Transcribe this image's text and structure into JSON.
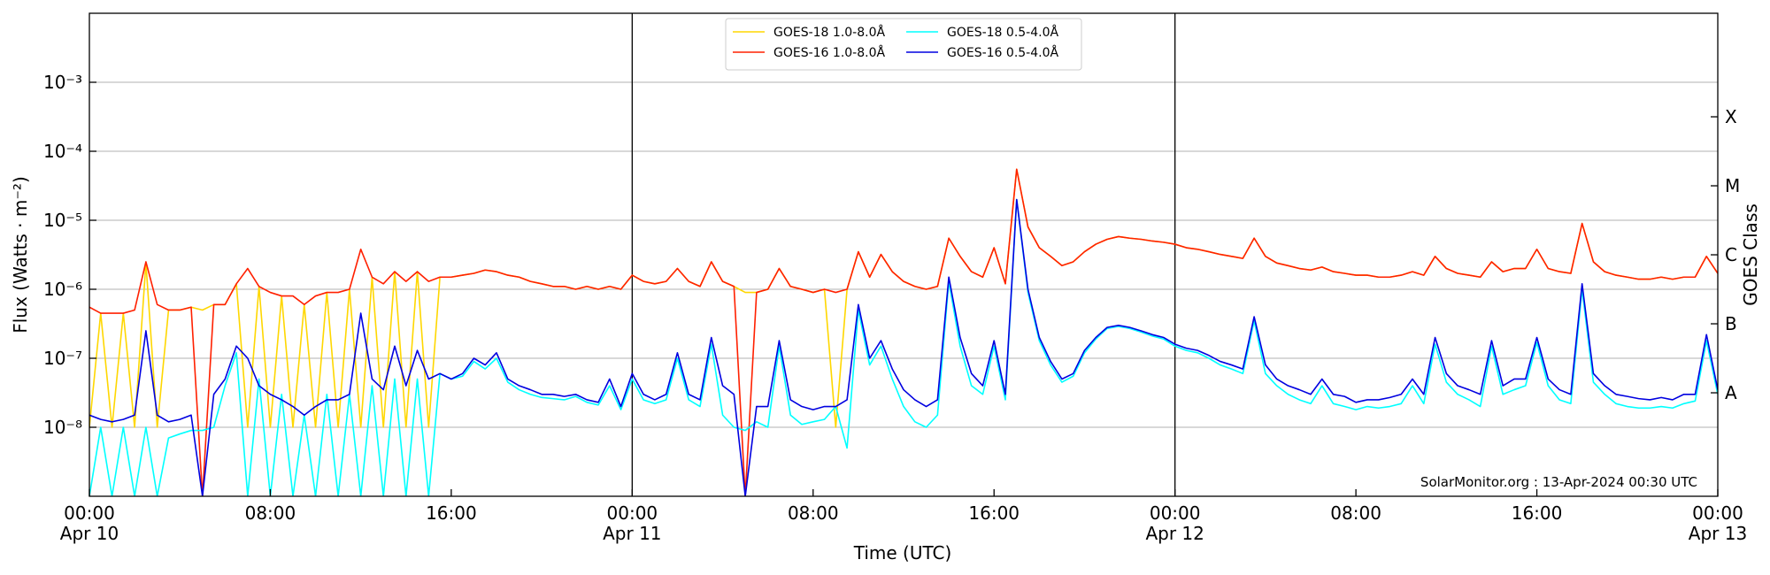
{
  "chart_data": {
    "type": "line",
    "xlabel": "Time (UTC)",
    "ylabel": "Flux (Watts · m⁻²)",
    "y2label": "GOES Class",
    "annotation": "SolarMonitor.org : 13-Apr-2024 00:30 UTC",
    "yscale": "log",
    "grid": true,
    "legend": "upper center",
    "xlim": [
      0,
      72
    ],
    "xticks": [
      {
        "value": 0,
        "label": "00:00\nApr 10"
      },
      {
        "value": 8,
        "label": "08:00"
      },
      {
        "value": 16,
        "label": "16:00"
      },
      {
        "value": 24,
        "label": "00:00\nApr 11"
      },
      {
        "value": 32,
        "label": "08:00"
      },
      {
        "value": 40,
        "label": "16:00"
      },
      {
        "value": 48,
        "label": "00:00\nApr 12"
      },
      {
        "value": 56,
        "label": "08:00"
      },
      {
        "value": 64,
        "label": "16:00"
      },
      {
        "value": 72,
        "label": "00:00\nApr 13"
      }
    ],
    "ylim": [
      1e-09,
      0.01
    ],
    "yticks": [
      {
        "value": 1e-08,
        "label": "10⁻⁸"
      },
      {
        "value": 1e-07,
        "label": "10⁻⁷"
      },
      {
        "value": 1e-06,
        "label": "10⁻⁶"
      },
      {
        "value": 1e-05,
        "label": "10⁻⁵"
      },
      {
        "value": 0.0001,
        "label": "10⁻⁴"
      },
      {
        "value": 0.001,
        "label": "10⁻³"
      }
    ],
    "y2lim": [
      1e-09,
      0.01
    ],
    "y2ticks": [
      {
        "value": 3.16e-08,
        "label": "A"
      },
      {
        "value": 3.16e-07,
        "label": "B"
      },
      {
        "value": 3.16e-06,
        "label": "C"
      },
      {
        "value": 3.16e-05,
        "label": "M"
      },
      {
        "value": 0.000316,
        "label": "X"
      }
    ],
    "x": [
      0,
      0.5,
      1,
      1.5,
      2,
      2.5,
      3,
      3.5,
      4,
      4.5,
      5,
      5.5,
      6,
      6.5,
      7,
      7.5,
      8,
      8.5,
      9,
      9.5,
      10,
      10.5,
      11,
      11.5,
      12,
      12.5,
      13,
      13.5,
      14,
      14.5,
      15,
      15.5,
      16,
      16.5,
      17,
      17.5,
      18,
      18.5,
      19,
      19.5,
      20,
      20.5,
      21,
      21.5,
      22,
      22.5,
      23,
      23.5,
      24,
      24.5,
      25,
      25.5,
      26,
      26.5,
      27,
      27.5,
      28,
      28.5,
      29,
      29.5,
      30,
      30.5,
      31,
      31.5,
      32,
      32.5,
      33,
      33.5,
      34,
      34.5,
      35,
      35.5,
      36,
      36.5,
      37,
      37.5,
      38,
      38.5,
      39,
      39.5,
      40,
      40.5,
      41,
      41.5,
      42,
      42.5,
      43,
      43.5,
      44,
      44.5,
      45,
      45.5,
      46,
      46.5,
      47,
      47.5,
      48,
      48.5,
      49,
      49.5,
      50,
      50.5,
      51,
      51.5,
      52,
      52.5,
      53,
      53.5,
      54,
      54.5,
      55,
      55.5,
      56,
      56.5,
      57,
      57.5,
      58,
      58.5,
      59,
      59.5,
      60,
      60.5,
      61,
      61.5,
      62,
      62.5,
      63,
      63.5,
      64,
      64.5,
      65,
      65.5,
      66,
      66.5,
      67,
      67.5,
      68,
      68.5,
      69,
      69.5,
      70,
      70.5,
      71,
      71.5,
      72
    ],
    "series": [
      {
        "name": "GOES-18 1.0-8.0Å",
        "color": "#ffd700",
        "values": [
          1e-08,
          4.5e-07,
          1e-08,
          4.5e-07,
          1e-08,
          2.4e-06,
          1e-08,
          5e-07,
          5e-07,
          5.5e-07,
          5e-07,
          6e-07,
          6e-07,
          1.2e-06,
          1e-08,
          1.1e-06,
          1e-08,
          8e-07,
          1e-08,
          6e-07,
          1e-08,
          9e-07,
          1e-08,
          1e-06,
          1e-08,
          1.5e-06,
          1e-08,
          1.8e-06,
          1e-08,
          1.8e-06,
          1e-08,
          1.5e-06,
          1.5e-06,
          1.6e-06,
          1.7e-06,
          1.9e-06,
          1.8e-06,
          1.6e-06,
          1.5e-06,
          1.3e-06,
          1.2e-06,
          1.1e-06,
          1.1e-06,
          1e-06,
          1.1e-06,
          1e-06,
          1.1e-06,
          1e-06,
          1.6e-06,
          1.3e-06,
          1.2e-06,
          1.3e-06,
          2e-06,
          1.3e-06,
          1.1e-06,
          2.5e-06,
          1.3e-06,
          1.1e-06,
          9e-07,
          9e-07,
          1e-06,
          2e-06,
          1.1e-06,
          1e-06,
          9e-07,
          1e-06,
          1e-08,
          1e-06,
          3.5e-06,
          1.5e-06,
          3.2e-06,
          1.8e-06,
          1.3e-06,
          1.1e-06,
          1e-06,
          1.1e-06,
          5.5e-06,
          3e-06,
          1.8e-06,
          1.5e-06,
          4e-06,
          1.2e-06,
          5.5e-05,
          8e-06,
          4e-06,
          3e-06,
          2.2e-06,
          2.5e-06,
          3.5e-06,
          4.5e-06,
          5.3e-06,
          5.8e-06,
          5.5e-06,
          5.3e-06,
          5e-06,
          4.8e-06,
          4.5e-06,
          4e-06,
          3.8e-06,
          3.5e-06,
          3.2e-06,
          3e-06,
          2.8e-06,
          5.5e-06,
          3e-06,
          2.4e-06,
          2.2e-06,
          2e-06,
          1.9e-06,
          2.1e-06,
          1.8e-06,
          1.7e-06,
          1.6e-06,
          1.6e-06,
          1.5e-06,
          1.5e-06,
          1.6e-06,
          1.8e-06,
          1.6e-06,
          3e-06,
          2e-06,
          1.7e-06,
          1.6e-06,
          1.5e-06,
          2.5e-06,
          1.8e-06,
          2e-06,
          2e-06,
          3.8e-06,
          2e-06,
          1.8e-06,
          1.7e-06,
          9e-06,
          2.5e-06,
          1.8e-06,
          1.6e-06,
          1.5e-06,
          1.4e-06,
          1.4e-06,
          1.5e-06,
          1.4e-06,
          1.5e-06,
          1.5e-06,
          3e-06,
          1.7e-06
        ]
      },
      {
        "name": "GOES-16 1.0-8.0Å",
        "color": "#ff2000",
        "values": [
          5.5e-07,
          4.5e-07,
          4.5e-07,
          4.5e-07,
          5e-07,
          2.5e-06,
          6e-07,
          5e-07,
          5e-07,
          5.5e-07,
          1e-09,
          6e-07,
          6e-07,
          1.2e-06,
          2e-06,
          1.1e-06,
          9e-07,
          8e-07,
          8e-07,
          6e-07,
          8e-07,
          9e-07,
          9e-07,
          1e-06,
          3.8e-06,
          1.5e-06,
          1.2e-06,
          1.8e-06,
          1.3e-06,
          1.8e-06,
          1.3e-06,
          1.5e-06,
          1.5e-06,
          1.6e-06,
          1.7e-06,
          1.9e-06,
          1.8e-06,
          1.6e-06,
          1.5e-06,
          1.3e-06,
          1.2e-06,
          1.1e-06,
          1.1e-06,
          1e-06,
          1.1e-06,
          1e-06,
          1.1e-06,
          1e-06,
          1.6e-06,
          1.3e-06,
          1.2e-06,
          1.3e-06,
          2e-06,
          1.3e-06,
          1.1e-06,
          2.5e-06,
          1.3e-06,
          1.1e-06,
          1e-09,
          9e-07,
          1e-06,
          2e-06,
          1.1e-06,
          1e-06,
          9e-07,
          1e-06,
          9e-07,
          1e-06,
          3.5e-06,
          1.5e-06,
          3.2e-06,
          1.8e-06,
          1.3e-06,
          1.1e-06,
          1e-06,
          1.1e-06,
          5.5e-06,
          3e-06,
          1.8e-06,
          1.5e-06,
          4e-06,
          1.2e-06,
          5.5e-05,
          8e-06,
          4e-06,
          3e-06,
          2.2e-06,
          2.5e-06,
          3.5e-06,
          4.5e-06,
          5.3e-06,
          5.8e-06,
          5.5e-06,
          5.3e-06,
          5e-06,
          4.8e-06,
          4.5e-06,
          4e-06,
          3.8e-06,
          3.5e-06,
          3.2e-06,
          3e-06,
          2.8e-06,
          5.5e-06,
          3e-06,
          2.4e-06,
          2.2e-06,
          2e-06,
          1.9e-06,
          2.1e-06,
          1.8e-06,
          1.7e-06,
          1.6e-06,
          1.6e-06,
          1.5e-06,
          1.5e-06,
          1.6e-06,
          1.8e-06,
          1.6e-06,
          3e-06,
          2e-06,
          1.7e-06,
          1.6e-06,
          1.5e-06,
          2.5e-06,
          1.8e-06,
          2e-06,
          2e-06,
          3.8e-06,
          2e-06,
          1.8e-06,
          1.7e-06,
          9e-06,
          2.5e-06,
          1.8e-06,
          1.6e-06,
          1.5e-06,
          1.4e-06,
          1.4e-06,
          1.5e-06,
          1.4e-06,
          1.5e-06,
          1.5e-06,
          3e-06,
          1.7e-06
        ]
      },
      {
        "name": "GOES-18 0.5-4.0Å",
        "color": "#00ffff",
        "values": [
          1e-09,
          1e-08,
          1e-09,
          1e-08,
          1e-09,
          1e-08,
          1e-09,
          7e-09,
          8e-09,
          9e-09,
          9e-09,
          1e-08,
          4e-08,
          1.2e-07,
          1e-09,
          5e-08,
          1e-09,
          3e-08,
          1e-09,
          1.5e-08,
          1e-09,
          3e-08,
          1e-09,
          3e-08,
          1e-09,
          4e-08,
          1e-09,
          5e-08,
          1e-09,
          5e-08,
          1e-09,
          6e-08,
          5e-08,
          5.5e-08,
          9e-08,
          7e-08,
          1e-07,
          4.5e-08,
          3.5e-08,
          3e-08,
          2.7e-08,
          2.6e-08,
          2.5e-08,
          2.8e-08,
          2.3e-08,
          2.1e-08,
          4e-08,
          1.8e-08,
          5e-08,
          2.5e-08,
          2.2e-08,
          2.5e-08,
          1e-07,
          2.5e-08,
          2e-08,
          1.6e-07,
          1.5e-08,
          1e-08,
          9e-09,
          1.2e-08,
          1e-08,
          1.5e-07,
          1.5e-08,
          1.1e-08,
          1.2e-08,
          1.3e-08,
          2e-08,
          5e-09,
          5e-07,
          8e-08,
          1.5e-07,
          5e-08,
          2e-08,
          1.2e-08,
          1e-08,
          1.5e-08,
          1.3e-06,
          1.5e-07,
          4e-08,
          3e-08,
          1.5e-07,
          2.5e-08,
          2e-05,
          9e-07,
          1.8e-07,
          8e-08,
          4.5e-08,
          5.5e-08,
          1.2e-07,
          1.9e-07,
          2.7e-07,
          2.9e-07,
          2.7e-07,
          2.4e-07,
          2.1e-07,
          1.9e-07,
          1.5e-07,
          1.3e-07,
          1.2e-07,
          1e-07,
          8e-08,
          7e-08,
          6e-08,
          3.5e-07,
          6e-08,
          4e-08,
          3e-08,
          2.5e-08,
          2.2e-08,
          4e-08,
          2.2e-08,
          2e-08,
          1.8e-08,
          2e-08,
          1.9e-08,
          2e-08,
          2.2e-08,
          4e-08,
          2.2e-08,
          1.6e-07,
          4.5e-08,
          3e-08,
          2.5e-08,
          2e-08,
          1.5e-07,
          3e-08,
          3.5e-08,
          4e-08,
          1.7e-07,
          4e-08,
          2.5e-08,
          2.2e-08,
          1e-06,
          4.5e-08,
          3e-08,
          2.2e-08,
          2e-08,
          1.9e-08,
          1.9e-08,
          2e-08,
          1.9e-08,
          2.2e-08,
          2.4e-08,
          1.8e-07,
          3e-08
        ]
      },
      {
        "name": "GOES-16 0.5-4.0Å",
        "color": "#0000e0",
        "values": [
          1.5e-08,
          1.3e-08,
          1.2e-08,
          1.3e-08,
          1.5e-08,
          2.5e-07,
          1.5e-08,
          1.2e-08,
          1.3e-08,
          1.5e-08,
          1e-09,
          3e-08,
          5e-08,
          1.5e-07,
          1e-07,
          4e-08,
          3e-08,
          2.5e-08,
          2e-08,
          1.5e-08,
          2e-08,
          2.5e-08,
          2.5e-08,
          3e-08,
          4.5e-07,
          5e-08,
          3.5e-08,
          1.5e-07,
          4e-08,
          1.3e-07,
          5e-08,
          6e-08,
          5e-08,
          6e-08,
          1e-07,
          8e-08,
          1.2e-07,
          5e-08,
          4e-08,
          3.5e-08,
          3e-08,
          3e-08,
          2.8e-08,
          3e-08,
          2.5e-08,
          2.3e-08,
          5e-08,
          2e-08,
          6e-08,
          3e-08,
          2.5e-08,
          3e-08,
          1.2e-07,
          3e-08,
          2.5e-08,
          2e-07,
          4e-08,
          3e-08,
          1e-09,
          2e-08,
          2e-08,
          1.8e-07,
          2.5e-08,
          2e-08,
          1.8e-08,
          2e-08,
          2e-08,
          2.5e-08,
          6e-07,
          1e-07,
          1.8e-07,
          7e-08,
          3.5e-08,
          2.5e-08,
          2e-08,
          2.5e-08,
          1.5e-06,
          2e-07,
          6e-08,
          4e-08,
          1.8e-07,
          3e-08,
          2e-05,
          1e-06,
          2e-07,
          9e-08,
          5e-08,
          6e-08,
          1.3e-07,
          2e-07,
          2.8e-07,
          3e-07,
          2.8e-07,
          2.5e-07,
          2.2e-07,
          2e-07,
          1.6e-07,
          1.4e-07,
          1.3e-07,
          1.1e-07,
          9e-08,
          8e-08,
          7e-08,
          4e-07,
          8e-08,
          5e-08,
          4e-08,
          3.5e-08,
          3e-08,
          5e-08,
          3e-08,
          2.8e-08,
          2.3e-08,
          2.5e-08,
          2.5e-08,
          2.7e-08,
          3e-08,
          5e-08,
          3e-08,
          2e-07,
          6e-08,
          4e-08,
          3.5e-08,
          3e-08,
          1.8e-07,
          4e-08,
          5e-08,
          5e-08,
          2e-07,
          5e-08,
          3.5e-08,
          3e-08,
          1.2e-06,
          6e-08,
          4e-08,
          3e-08,
          2.8e-08,
          2.6e-08,
          2.5e-08,
          2.7e-08,
          2.5e-08,
          3e-08,
          3e-08,
          2.2e-07,
          3.5e-08
        ]
      }
    ]
  }
}
